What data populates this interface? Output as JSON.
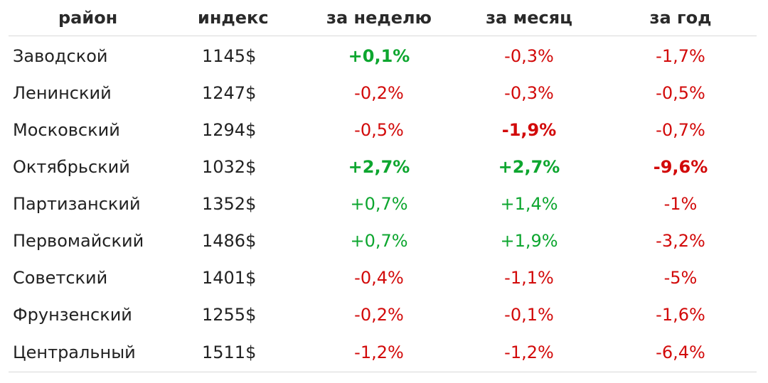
{
  "table": {
    "headers": [
      "район",
      "индекс",
      "за неделю",
      "за месяц",
      "за год"
    ],
    "rows": [
      {
        "district": "Заводской",
        "index": "1145$",
        "week": {
          "text": "+0,1%",
          "sign": "pos",
          "bold": true
        },
        "month": {
          "text": "-0,3%",
          "sign": "neg",
          "bold": false
        },
        "year": {
          "text": "-1,7%",
          "sign": "neg",
          "bold": false
        }
      },
      {
        "district": "Ленинский",
        "index": "1247$",
        "week": {
          "text": "-0,2%",
          "sign": "neg",
          "bold": false
        },
        "month": {
          "text": "-0,3%",
          "sign": "neg",
          "bold": false
        },
        "year": {
          "text": "-0,5%",
          "sign": "neg",
          "bold": false
        }
      },
      {
        "district": "Московский",
        "index": "1294$",
        "week": {
          "text": "-0,5%",
          "sign": "neg",
          "bold": false
        },
        "month": {
          "text": "-1,9%",
          "sign": "neg",
          "bold": true
        },
        "year": {
          "text": "-0,7%",
          "sign": "neg",
          "bold": false
        }
      },
      {
        "district": "Октябрьский",
        "index": "1032$",
        "week": {
          "text": "+2,7%",
          "sign": "pos",
          "bold": true
        },
        "month": {
          "text": "+2,7%",
          "sign": "pos",
          "bold": true
        },
        "year": {
          "text": "-9,6%",
          "sign": "neg",
          "bold": true
        }
      },
      {
        "district": "Партизанский",
        "index": "1352$",
        "week": {
          "text": "+0,7%",
          "sign": "pos",
          "bold": false
        },
        "month": {
          "text": "+1,4%",
          "sign": "pos",
          "bold": false
        },
        "year": {
          "text": "-1%",
          "sign": "neg",
          "bold": false
        }
      },
      {
        "district": "Первомайский",
        "index": "1486$",
        "week": {
          "text": "+0,7%",
          "sign": "pos",
          "bold": false
        },
        "month": {
          "text": "+1,9%",
          "sign": "pos",
          "bold": false
        },
        "year": {
          "text": "-3,2%",
          "sign": "neg",
          "bold": false
        }
      },
      {
        "district": "Советский",
        "index": "1401$",
        "week": {
          "text": "-0,4%",
          "sign": "neg",
          "bold": false
        },
        "month": {
          "text": "-1,1%",
          "sign": "neg",
          "bold": false
        },
        "year": {
          "text": "-5%",
          "sign": "neg",
          "bold": false
        }
      },
      {
        "district": "Фрунзенский",
        "index": "1255$",
        "week": {
          "text": "-0,2%",
          "sign": "neg",
          "bold": false
        },
        "month": {
          "text": "-0,1%",
          "sign": "neg",
          "bold": false
        },
        "year": {
          "text": "-1,6%",
          "sign": "neg",
          "bold": false
        }
      },
      {
        "district": "Центральный",
        "index": "1511$",
        "week": {
          "text": "-1,2%",
          "sign": "neg",
          "bold": false
        },
        "month": {
          "text": "-1,2%",
          "sign": "neg",
          "bold": false
        },
        "year": {
          "text": "-6,4%",
          "sign": "neg",
          "bold": false
        }
      }
    ]
  },
  "colors": {
    "positive": "#0da62f",
    "negative": "#d20a0a",
    "text": "#222222",
    "rule": "#d9d9d9"
  }
}
